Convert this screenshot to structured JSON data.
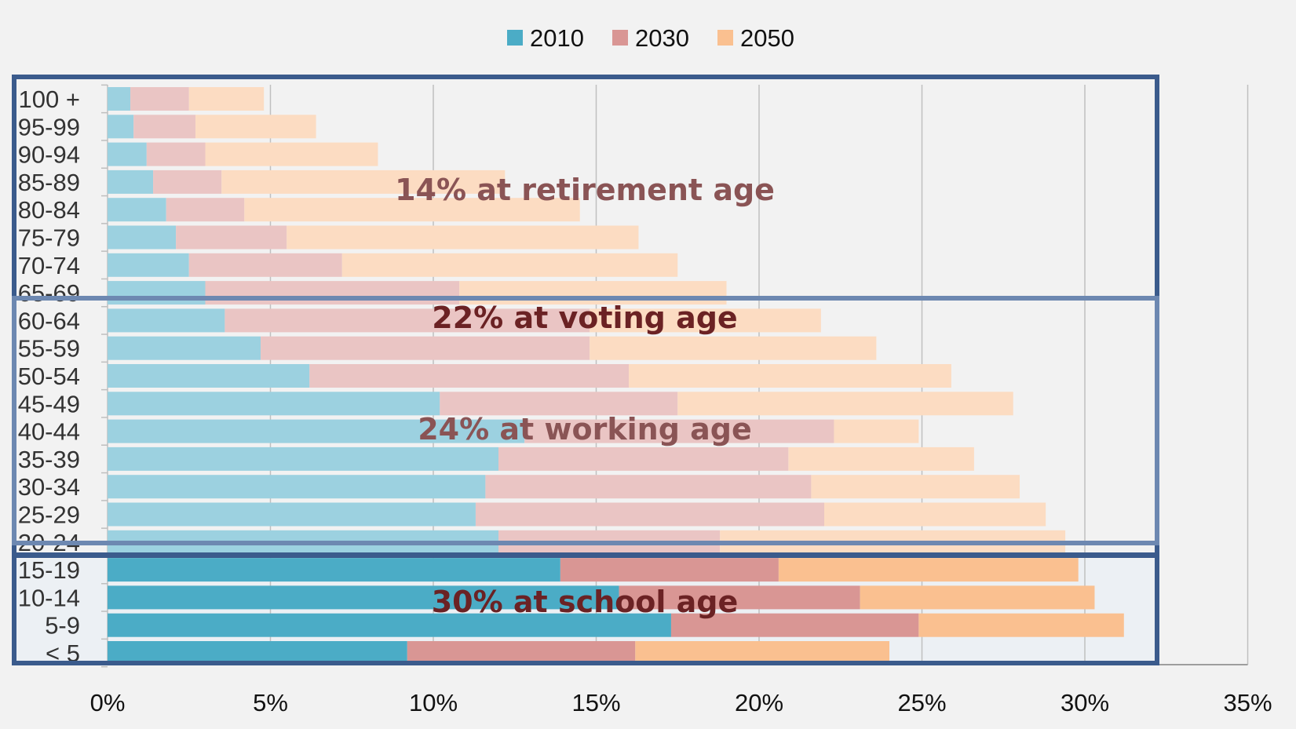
{
  "chart_data": {
    "type": "bar",
    "orientation": "horizontal",
    "stacked": true,
    "categories": [
      "100 +",
      "95-99",
      "90-94",
      "85-89",
      "80-84",
      "75-79",
      "70-74",
      "65-69",
      "60-64",
      "55-59",
      "50-54",
      "45-49",
      "40-44",
      "35-39",
      "30-34",
      "25-29",
      "20-24",
      "15-19",
      "10-14",
      "5-9",
      "< 5"
    ],
    "series": [
      {
        "name": "2010",
        "color": "#4bacc6",
        "values": [
          0.7,
          0.8,
          1.2,
          1.4,
          1.8,
          2.1,
          2.5,
          3.0,
          3.6,
          4.7,
          6.2,
          10.2,
          12.8,
          12.0,
          11.6,
          11.3,
          12.0,
          13.9,
          15.7,
          17.3,
          9.2
        ]
      },
      {
        "name": "2030",
        "color": "#d99694",
        "values": [
          1.8,
          1.9,
          1.8,
          2.1,
          2.4,
          3.4,
          4.7,
          7.8,
          11.2,
          10.1,
          9.8,
          7.3,
          9.5,
          8.9,
          10.0,
          10.7,
          6.8,
          6.7,
          7.4,
          7.6,
          7.0
        ]
      },
      {
        "name": "2050",
        "color": "#fac090",
        "values": [
          2.3,
          3.7,
          5.3,
          8.7,
          10.3,
          10.8,
          10.3,
          8.2,
          7.1,
          8.8,
          9.9,
          10.3,
          2.6,
          5.7,
          6.4,
          6.8,
          10.6,
          9.2,
          7.2,
          6.3,
          7.8
        ]
      }
    ],
    "xlim": [
      0,
      35
    ],
    "xticks": [
      "0%",
      "5%",
      "10%",
      "15%",
      "20%",
      "25%",
      "30%",
      "35%"
    ],
    "legend_position": "top",
    "grid": true,
    "annotations": [
      {
        "text": "14% at retirement age",
        "color": "#8a5455"
      },
      {
        "text": "22% at voting age",
        "color": "#6b2224"
      },
      {
        "text": "24% at working age",
        "color": "#8a5455"
      },
      {
        "text": "30% at school age",
        "color": "#6b2224"
      }
    ]
  }
}
